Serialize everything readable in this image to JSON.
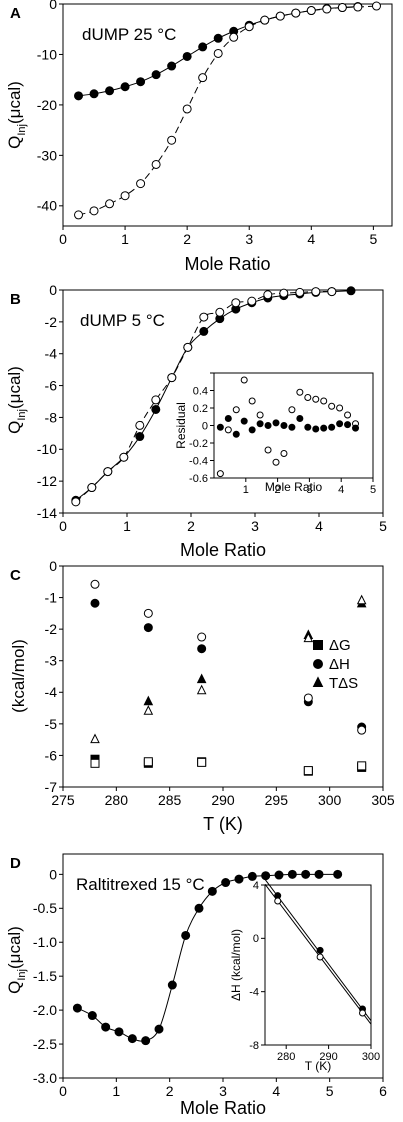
{
  "chart_data": [
    {
      "panel": "A",
      "type": "scatter",
      "annotation": "dUMP 25 °C",
      "xlabel": "Mole Ratio",
      "ylabel_main": "Q",
      "ylabel_sub": "Inj",
      "ylabel_unit": "(μcal)",
      "xlim": [
        0,
        5.3
      ],
      "ylim": [
        -44,
        0
      ],
      "xticks": [
        0,
        1,
        2,
        3,
        4,
        5
      ],
      "yticks": [
        0,
        -10,
        -20,
        -30,
        -40
      ],
      "series": [
        {
          "marker": "filled",
          "line": "solid",
          "x": [
            0.25,
            0.5,
            0.75,
            1.0,
            1.25,
            1.5,
            1.75,
            2.0,
            2.25,
            2.5,
            2.75,
            3.0,
            3.25,
            3.5,
            3.75,
            4.0,
            4.25,
            4.5,
            4.75
          ],
          "y": [
            -18.2,
            -17.8,
            -17.2,
            -16.4,
            -15.4,
            -14.0,
            -12.3,
            -10.4,
            -8.5,
            -6.8,
            -5.4,
            -4.2,
            -3.2,
            -2.4,
            -1.8,
            -1.3,
            -0.9,
            -0.7,
            -0.5
          ]
        },
        {
          "marker": "open",
          "line": "dashed",
          "x": [
            0.25,
            0.5,
            0.75,
            1.0,
            1.25,
            1.5,
            1.75,
            2.0,
            2.25,
            2.5,
            2.75,
            3.0,
            3.25,
            3.5,
            3.75,
            4.0,
            4.25,
            4.5,
            4.75,
            5.05
          ],
          "y": [
            -41.8,
            -41.0,
            -39.6,
            -38.0,
            -35.6,
            -31.8,
            -27.0,
            -20.8,
            -14.6,
            -9.8,
            -6.6,
            -4.5,
            -3.2,
            -2.4,
            -1.8,
            -1.3,
            -1.0,
            -0.7,
            -0.6,
            -0.4
          ]
        }
      ]
    },
    {
      "panel": "B",
      "type": "scatter",
      "annotation": "dUMP 5 °C",
      "xlabel": "Mole Ratio",
      "ylabel_main": "Q",
      "ylabel_sub": "Inj",
      "ylabel_unit": "(μcal)",
      "xlim": [
        0,
        5
      ],
      "ylim": [
        -14,
        0
      ],
      "xticks": [
        0,
        1,
        2,
        3,
        4,
        5
      ],
      "yticks": [
        0,
        -2,
        -4,
        -6,
        -8,
        -10,
        -12,
        -14
      ],
      "series": [
        {
          "marker": "filled",
          "line": "solid",
          "x": [
            0.2,
            0.45,
            0.7,
            0.95,
            1.2,
            1.45,
            1.7,
            1.95,
            2.2,
            2.45,
            2.7,
            2.95,
            3.2,
            3.45,
            3.7,
            3.95,
            4.2,
            4.5
          ],
          "y": [
            -13.2,
            -12.4,
            -11.4,
            -10.5,
            -9.2,
            -7.5,
            -5.5,
            -3.6,
            -2.6,
            -1.8,
            -1.2,
            -0.8,
            -0.5,
            -0.35,
            -0.25,
            -0.15,
            -0.1,
            -0.05
          ]
        },
        {
          "marker": "open",
          "line": "dashed",
          "x": [
            0.2,
            0.45,
            0.7,
            0.95,
            1.2,
            1.45,
            1.7,
            1.95,
            2.2,
            2.45,
            2.7,
            2.95,
            3.2,
            3.45,
            3.7,
            3.95,
            4.2
          ],
          "y": [
            -13.3,
            -12.4,
            -11.4,
            -10.5,
            -8.5,
            -6.9,
            -5.5,
            -3.6,
            -1.7,
            -1.4,
            -0.8,
            -0.7,
            -0.3,
            -0.2,
            -0.15,
            -0.1,
            -0.1
          ]
        }
      ],
      "inset": {
        "xlabel": "Mole Ratio",
        "ylabel": "Residual",
        "xlim": [
          0,
          5
        ],
        "ylim": [
          -0.6,
          0.6
        ],
        "xticks": [
          1,
          2,
          3,
          4,
          5
        ],
        "yticks": [
          0.6,
          0.4,
          0.2,
          0,
          -0.2,
          -0.4,
          -0.6
        ],
        "ytick_labels": [
          "",
          "0.4",
          "0.2",
          "0",
          "-0.2",
          "-0.4",
          "-0.6"
        ],
        "series": [
          {
            "marker": "open",
            "x": [
              0.2,
              0.45,
              0.7,
              0.95,
              1.2,
              1.45,
              1.7,
              1.95,
              2.2,
              2.45,
              2.7,
              2.95,
              3.2,
              3.45,
              3.7,
              3.95,
              4.2,
              4.45
            ],
            "y": [
              -0.55,
              -0.05,
              0.18,
              0.52,
              0.28,
              0.12,
              -0.28,
              -0.42,
              -0.32,
              0.18,
              0.38,
              0.32,
              0.3,
              0.28,
              0.22,
              0.2,
              0.12,
              0.02
            ]
          },
          {
            "marker": "filled",
            "x": [
              0.2,
              0.45,
              0.7,
              0.95,
              1.2,
              1.45,
              1.7,
              1.95,
              2.2,
              2.45,
              2.7,
              2.95,
              3.2,
              3.45,
              3.7,
              3.95,
              4.2,
              4.45
            ],
            "y": [
              -0.02,
              0.08,
              -0.1,
              0.05,
              -0.05,
              0.02,
              0.0,
              0.03,
              0.0,
              -0.02,
              0.08,
              -0.02,
              -0.04,
              -0.03,
              -0.02,
              0.02,
              0.01,
              -0.03
            ]
          }
        ]
      }
    },
    {
      "panel": "C",
      "type": "scatter",
      "xlabel": "T (K)",
      "ylabel": "(kcal/mol)",
      "xlim": [
        275,
        305
      ],
      "ylim": [
        -7,
        0
      ],
      "xticks": [
        275,
        280,
        285,
        290,
        295,
        300,
        305
      ],
      "yticks": [
        0,
        -1,
        -2,
        -3,
        -4,
        -5,
        -6,
        -7
      ],
      "legend": {
        "position": "right",
        "entries": [
          "ΔG",
          "ΔH",
          "TΔS"
        ]
      },
      "series": [
        {
          "name": "ΔG",
          "marker": "square-filled",
          "x": [
            278,
            283,
            288,
            298,
            303
          ],
          "y": [
            -6.12,
            -6.25,
            -6.2,
            -6.5,
            -6.38
          ]
        },
        {
          "name": "",
          "marker": "square-open",
          "x": [
            278,
            283,
            288,
            298,
            303
          ],
          "y": [
            -6.25,
            -6.2,
            -6.22,
            -6.48,
            -6.33
          ]
        },
        {
          "name": "ΔH",
          "marker": "circle-filled",
          "x": [
            278,
            283,
            288,
            298,
            303
          ],
          "y": [
            -1.18,
            -1.95,
            -2.62,
            -4.3,
            -5.1
          ]
        },
        {
          "name": "",
          "marker": "circle-open",
          "x": [
            278,
            283,
            288,
            298,
            303
          ],
          "y": [
            -0.58,
            -1.5,
            -2.25,
            -4.18,
            -5.2
          ]
        },
        {
          "name": "TΔS",
          "marker": "triangle-filled",
          "x": [
            283,
            288,
            298,
            303
          ],
          "y": [
            -4.3,
            -3.6,
            -2.2,
            -1.2
          ]
        },
        {
          "name": "",
          "marker": "triangle-open",
          "x": [
            278,
            283,
            288,
            298,
            303
          ],
          "y": [
            -5.5,
            -4.6,
            -3.95,
            -2.3,
            -1.1
          ]
        }
      ]
    },
    {
      "panel": "D",
      "type": "scatter",
      "annotation": "Raltitrexed 15 °C",
      "xlabel": "Mole Ratio",
      "ylabel_main": "Q",
      "ylabel_sub": "Inj",
      "ylabel_unit": "(μcal)",
      "xlim": [
        0,
        6
      ],
      "ylim": [
        -3.0,
        0.3
      ],
      "xticks": [
        0,
        1,
        2,
        3,
        4,
        5,
        6
      ],
      "yticks": [
        0,
        -0.5,
        -1.0,
        -1.5,
        -2.0,
        -2.5,
        -3.0
      ],
      "ytick_labels": [
        "0",
        "-0.5",
        "-1.0",
        "-1.5",
        "-2.0",
        "-2.5",
        "-3.0"
      ],
      "series": [
        {
          "marker": "filled",
          "line": "solid",
          "x": [
            0.27,
            0.55,
            0.8,
            1.05,
            1.3,
            1.55,
            1.8,
            2.05,
            2.3,
            2.55,
            2.8,
            3.05,
            3.3,
            3.55,
            3.8,
            4.05,
            4.3,
            4.55,
            4.8,
            5.15
          ],
          "y": [
            -1.97,
            -2.08,
            -2.25,
            -2.32,
            -2.42,
            -2.45,
            -2.28,
            -1.63,
            -0.9,
            -0.5,
            -0.25,
            -0.12,
            -0.07,
            -0.03,
            -0.02,
            -0.01,
            0.0,
            0.0,
            0.0,
            0.0
          ]
        }
      ],
      "inset": {
        "xlabel": "T (K)",
        "ylabel": "ΔH (kcal/mol)",
        "xlim": [
          275,
          300
        ],
        "ylim": [
          -8,
          4
        ],
        "xticks": [
          280,
          290,
          300
        ],
        "yticks": [
          4,
          0,
          -4,
          -8
        ],
        "series": [
          {
            "marker": "filled",
            "x": [
              278,
              288,
              298
            ],
            "y": [
              3.2,
              -0.9,
              -5.3
            ]
          },
          {
            "marker": "open",
            "x": [
              278,
              288,
              298
            ],
            "y": [
              2.8,
              -1.4,
              -5.6
            ]
          }
        ]
      }
    }
  ]
}
